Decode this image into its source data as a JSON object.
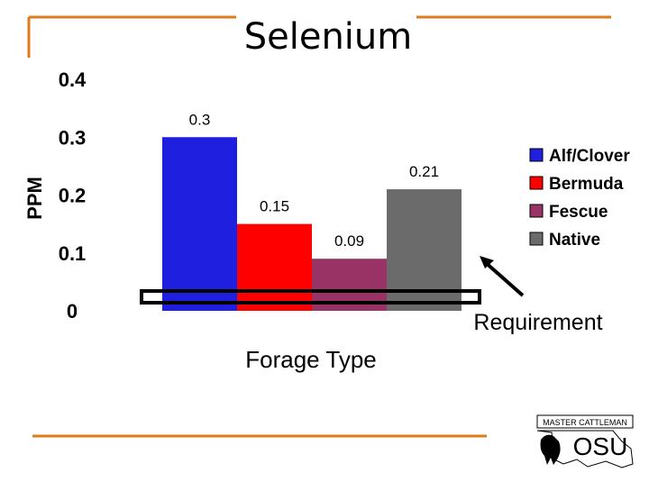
{
  "chart_data": {
    "type": "bar",
    "title": "Selenium",
    "xlabel": "Forage Type",
    "ylabel": "PPM",
    "ylim": [
      0,
      0.4
    ],
    "yticks": [
      "0.4",
      "0.3",
      "0.2",
      "0.1",
      "0"
    ],
    "categories": [
      "Alf/Clover",
      "Bermuda",
      "Fescue",
      "Native"
    ],
    "values": [
      0.3,
      0.15,
      0.09,
      0.21
    ],
    "value_labels": [
      "0.3",
      "0.15",
      "0.09",
      "0.21"
    ],
    "colors": [
      "#1f1fe0",
      "#ff0000",
      "#993366",
      "#6b6b6b"
    ],
    "legend_position": "right",
    "grid": false,
    "annotation": {
      "text": "Requirement"
    }
  },
  "logo": {
    "text": "MASTER CATTLEMAN OSU"
  },
  "theme": {
    "rule_color": "#e07a1e"
  }
}
